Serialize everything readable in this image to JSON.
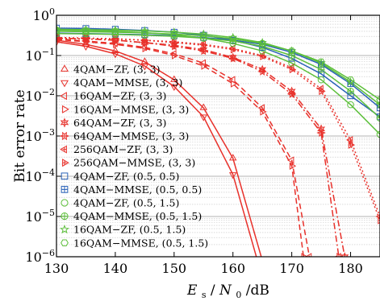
{
  "chart_data": {
    "type": "line",
    "title": "",
    "xlabel": "E_s/N_0 /dB",
    "xlabel_parts": {
      "e": "E",
      "s": "s",
      "slash": " /",
      "n": "N",
      "zero": "0",
      "unit": " /dB"
    },
    "ylabel": "Bit error rate",
    "x_ticks": [
      "130",
      "140",
      "150",
      "160",
      "170",
      "180"
    ],
    "y_ticks": [
      {
        "base": "10",
        "exp": "0"
      },
      {
        "base": "10",
        "exp": "−1"
      },
      {
        "base": "10",
        "exp": "−2"
      },
      {
        "base": "10",
        "exp": "−3"
      },
      {
        "base": "10",
        "exp": "−4"
      },
      {
        "base": "10",
        "exp": "−5"
      },
      {
        "base": "10",
        "exp": "−6"
      }
    ],
    "xlim": [
      130,
      185
    ],
    "ylim": [
      1e-06,
      1
    ],
    "y_scale": "log",
    "grid": true,
    "legend_position": "left",
    "series": [
      {
        "name": "4QAM−ZF, (3, 3)",
        "color": "#e8302a",
        "dash": "solid",
        "marker": "triangle-up",
        "x": [
          130,
          135,
          140,
          145,
          150,
          155,
          160,
          165
        ],
        "y": [
          0.24,
          0.19,
          0.13,
          0.07,
          0.025,
          0.005,
          0.00028,
          8e-07
        ]
      },
      {
        "name": "4QAM−MMSE, (3, 3)",
        "color": "#e8302a",
        "dash": "solid",
        "marker": "triangle-down",
        "x": [
          130,
          135,
          140,
          145,
          150,
          155,
          160,
          165
        ],
        "y": [
          0.22,
          0.17,
          0.11,
          0.055,
          0.017,
          0.003,
          0.00011,
          3e-07
        ]
      },
      {
        "name": "16QAM−ZF, (3, 3)",
        "color": "#e8302a",
        "dash": "dashed",
        "marker": "triangle-left",
        "x": [
          130,
          135,
          140,
          145,
          150,
          155,
          160,
          165,
          170,
          173
        ],
        "y": [
          0.26,
          0.23,
          0.2,
          0.16,
          0.11,
          0.065,
          0.025,
          0.005,
          0.00025,
          1e-06
        ]
      },
      {
        "name": "16QAM−MMSE, (3, 3)",
        "color": "#e8302a",
        "dash": "dashed",
        "marker": "triangle-right",
        "x": [
          130,
          135,
          140,
          145,
          150,
          155,
          160,
          165,
          170,
          172
        ],
        "y": [
          0.25,
          0.22,
          0.19,
          0.15,
          0.1,
          0.055,
          0.02,
          0.004,
          0.00018,
          1e-06
        ]
      },
      {
        "name": "64QAM−ZF, (3, 3)",
        "color": "#e8302a",
        "dash": "dashdot",
        "marker": "six-star",
        "x": [
          130,
          135,
          140,
          145,
          150,
          155,
          160,
          165,
          170,
          175,
          179
        ],
        "y": [
          0.27,
          0.26,
          0.24,
          0.21,
          0.18,
          0.14,
          0.09,
          0.045,
          0.013,
          0.0015,
          1e-06
        ]
      },
      {
        "name": "64QAM−MMSE, (3, 3)",
        "color": "#e8302a",
        "dash": "dashdot",
        "marker": "six-star-r",
        "x": [
          130,
          135,
          140,
          145,
          150,
          155,
          160,
          165,
          170,
          175,
          178
        ],
        "y": [
          0.27,
          0.26,
          0.24,
          0.21,
          0.17,
          0.13,
          0.085,
          0.04,
          0.011,
          0.0012,
          1e-06
        ]
      },
      {
        "name": "256QAM−ZF, (3, 3)",
        "color": "#e8302a",
        "dash": "dotted",
        "marker": "tri-left",
        "x": [
          130,
          135,
          140,
          145,
          150,
          155,
          160,
          165,
          170,
          175,
          180,
          185
        ],
        "y": [
          0.28,
          0.27,
          0.26,
          0.24,
          0.22,
          0.19,
          0.15,
          0.1,
          0.05,
          0.015,
          0.0008,
          1e-05
        ]
      },
      {
        "name": "256QAM−MMSE, (3, 3)",
        "color": "#e8302a",
        "dash": "dotted",
        "marker": "tri-right",
        "x": [
          130,
          135,
          140,
          145,
          150,
          155,
          160,
          165,
          170,
          175,
          180,
          185
        ],
        "y": [
          0.28,
          0.27,
          0.26,
          0.24,
          0.21,
          0.18,
          0.14,
          0.095,
          0.045,
          0.013,
          0.0006,
          8e-06
        ]
      },
      {
        "name": "4QAM−ZF, (0.5, 0.5)",
        "color": "#2a62b8",
        "dash": "solid",
        "marker": "square",
        "x": [
          130,
          135,
          140,
          145,
          150,
          155,
          160,
          165,
          170,
          175,
          180,
          185
        ],
        "y": [
          0.48,
          0.47,
          0.45,
          0.42,
          0.38,
          0.32,
          0.24,
          0.16,
          0.085,
          0.035,
          0.01,
          0.003
        ]
      },
      {
        "name": "4QAM−MMSE, (0.5, 0.5)",
        "color": "#2a62b8",
        "dash": "solid",
        "marker": "square-plus",
        "x": [
          130,
          135,
          140,
          145,
          150,
          155,
          160,
          165,
          170,
          175,
          180,
          185
        ],
        "y": [
          0.36,
          0.35,
          0.34,
          0.33,
          0.31,
          0.28,
          0.24,
          0.19,
          0.12,
          0.06,
          0.02,
          0.005
        ]
      },
      {
        "name": "4QAM−ZF, (0.5, 1.5)",
        "color": "#5cbf3a",
        "dash": "solid",
        "marker": "circle",
        "x": [
          130,
          135,
          140,
          145,
          150,
          155,
          160,
          165,
          170,
          175,
          180,
          185
        ],
        "y": [
          0.43,
          0.42,
          0.4,
          0.37,
          0.33,
          0.27,
          0.2,
          0.13,
          0.065,
          0.025,
          0.006,
          0.0011
        ]
      },
      {
        "name": "4QAM−MMSE, (0.5, 1.5)",
        "color": "#5cbf3a",
        "dash": "solid",
        "marker": "circle-plus",
        "x": [
          130,
          135,
          140,
          145,
          150,
          155,
          160,
          165,
          170,
          175,
          180,
          185
        ],
        "y": [
          0.35,
          0.345,
          0.335,
          0.32,
          0.3,
          0.27,
          0.23,
          0.17,
          0.1,
          0.045,
          0.013,
          0.0028
        ]
      },
      {
        "name": "16QAM−ZF, (0.5, 1.5)",
        "color": "#5cbf3a",
        "dash": "solid",
        "marker": "star",
        "x": [
          130,
          135,
          140,
          145,
          150,
          155,
          160,
          165,
          170,
          175,
          180,
          185
        ],
        "y": [
          0.45,
          0.44,
          0.43,
          0.41,
          0.38,
          0.34,
          0.28,
          0.21,
          0.13,
          0.065,
          0.022,
          0.006
        ]
      },
      {
        "name": "16QAM−MMSE, (0.5, 1.5)",
        "color": "#5cbf3a",
        "dash": "solid",
        "marker": "hexagon",
        "x": [
          130,
          135,
          140,
          145,
          150,
          155,
          160,
          165,
          170,
          175,
          180,
          185
        ],
        "y": [
          0.4,
          0.39,
          0.38,
          0.365,
          0.34,
          0.31,
          0.26,
          0.2,
          0.13,
          0.07,
          0.025,
          0.008
        ]
      }
    ]
  }
}
